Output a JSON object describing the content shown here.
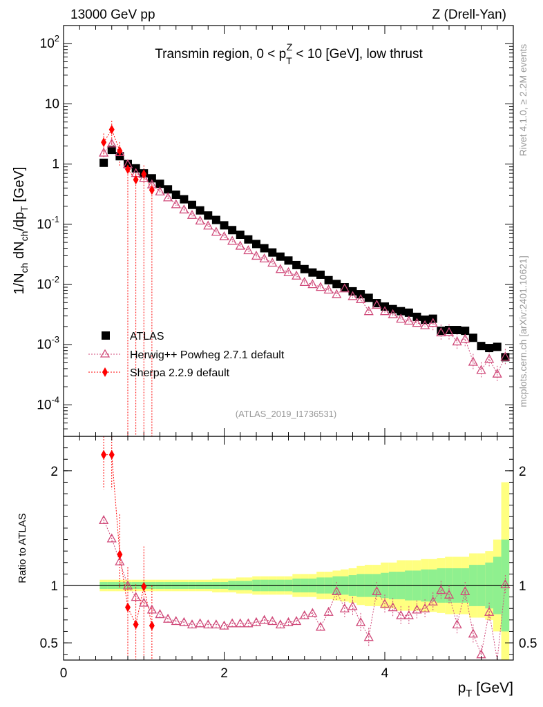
{
  "header": {
    "left": "13000 GeV pp",
    "right": "Z (Drell-Yan)",
    "region_title": "Transmin region, 0 < p_T^Z < 10 [GeV], low thrust",
    "analysis_id": "(ATLAS_2019_I1736531)",
    "side_rivet": "Rivet 4.1.0, ≥ 2.2M events",
    "side_mcplots": "mcplots.cern.ch [arXiv:2401.10621]"
  },
  "chart_data": {
    "type": "scatter",
    "x": [
      0.5,
      0.6,
      0.7,
      0.8,
      0.9,
      1.0,
      1.1,
      1.2,
      1.3,
      1.4,
      1.5,
      1.6,
      1.7,
      1.8,
      1.9,
      2.0,
      2.1,
      2.2,
      2.3,
      2.4,
      2.5,
      2.6,
      2.7,
      2.8,
      2.9,
      3.0,
      3.1,
      3.2,
      3.3,
      3.4,
      3.5,
      3.6,
      3.7,
      3.8,
      3.9,
      4.0,
      4.1,
      4.2,
      4.3,
      4.4,
      4.5,
      4.6,
      4.7,
      4.8,
      4.9,
      5.0,
      5.1,
      5.2,
      5.3,
      5.4,
      5.5
    ],
    "xlim": [
      0,
      5.6
    ],
    "xlabel": "p_T [GeV]",
    "main": {
      "ylabel": "1/N_ch dN_ch/dp_T [GeV]",
      "yscale": "log",
      "ylim": [
        3e-05,
        200
      ],
      "yticks": [
        {
          "v": 0.0001,
          "label": "10^-4"
        },
        {
          "v": 0.001,
          "label": "10^-3"
        },
        {
          "v": 0.01,
          "label": "10^-2"
        },
        {
          "v": 0.1,
          "label": "10^-1"
        },
        {
          "v": 1,
          "label": "1"
        },
        {
          "v": 10,
          "label": "10"
        },
        {
          "v": 100,
          "label": "10^2"
        }
      ]
    },
    "ratio": {
      "ylabel": "Ratio to ATLAS",
      "ylim": [
        0.35,
        2.3
      ],
      "yticks": [
        0.5,
        1,
        2
      ],
      "xticks": [
        0,
        2,
        4
      ],
      "band_inner": [
        0.03,
        0.03,
        0.03,
        0.03,
        0.03,
        0.03,
        0.03,
        0.03,
        0.03,
        0.03,
        0.03,
        0.03,
        0.03,
        0.03,
        0.03,
        0.03,
        0.04,
        0.04,
        0.04,
        0.05,
        0.05,
        0.05,
        0.05,
        0.05,
        0.06,
        0.06,
        0.06,
        0.07,
        0.07,
        0.08,
        0.08,
        0.09,
        0.1,
        0.1,
        0.1,
        0.11,
        0.12,
        0.12,
        0.13,
        0.13,
        0.14,
        0.14,
        0.15,
        0.15,
        0.15,
        0.15,
        0.18,
        0.18,
        0.2,
        0.25,
        0.4
      ],
      "band_outer": [
        0.05,
        0.05,
        0.05,
        0.05,
        0.05,
        0.05,
        0.05,
        0.05,
        0.05,
        0.05,
        0.05,
        0.05,
        0.05,
        0.05,
        0.06,
        0.06,
        0.06,
        0.07,
        0.07,
        0.08,
        0.08,
        0.08,
        0.08,
        0.08,
        0.1,
        0.1,
        0.1,
        0.12,
        0.12,
        0.13,
        0.14,
        0.15,
        0.17,
        0.18,
        0.18,
        0.2,
        0.2,
        0.22,
        0.22,
        0.22,
        0.23,
        0.23,
        0.24,
        0.25,
        0.25,
        0.25,
        0.28,
        0.28,
        0.3,
        0.4,
        0.9
      ]
    },
    "series": [
      {
        "name": "ATLAS",
        "marker": "square",
        "color": "#000000",
        "values": [
          1.05,
          1.72,
          1.35,
          1.0,
          0.85,
          0.7,
          0.58,
          0.47,
          0.38,
          0.31,
          0.26,
          0.21,
          0.17,
          0.14,
          0.118,
          0.096,
          0.08,
          0.067,
          0.056,
          0.047,
          0.04,
          0.034,
          0.029,
          0.025,
          0.021,
          0.018,
          0.0158,
          0.0145,
          0.0118,
          0.0102,
          0.009,
          0.0077,
          0.0069,
          0.006,
          0.0049,
          0.0043,
          0.0039,
          0.0036,
          0.0034,
          0.0029,
          0.0026,
          0.0027,
          0.0017,
          0.00175,
          0.00175,
          0.0017,
          0.0013,
          0.00095,
          0.00088,
          0.00092,
          0.00062
        ],
        "ratio": []
      },
      {
        "name": "Herwig++ Powheg 2.7.1 default",
        "marker": "open-triangle",
        "color": "#d04a7a",
        "values": [
          1.55,
          2.2,
          1.58,
          1.0,
          0.71,
          0.59,
          0.46,
          0.35,
          0.28,
          0.215,
          0.176,
          0.143,
          0.115,
          0.095,
          0.075,
          0.063,
          0.053,
          0.044,
          0.037,
          0.03,
          0.027,
          0.023,
          0.018,
          0.016,
          0.014,
          0.011,
          0.0101,
          0.0091,
          0.0082,
          0.0069,
          0.0086,
          0.0064,
          0.0057,
          0.0036,
          0.0046,
          0.0036,
          0.0032,
          0.0027,
          0.0025,
          0.0023,
          0.0021,
          0.0023,
          0.0016,
          0.00162,
          0.00113,
          0.00125,
          0.00052,
          0.00038,
          0.00058,
          0.00033,
          0.00063
        ],
        "ratio": [
          1.57,
          1.41,
          1.21,
          1.0,
          0.9,
          0.85,
          0.79,
          0.75,
          0.71,
          0.69,
          0.68,
          0.66,
          0.67,
          0.66,
          0.66,
          0.65,
          0.67,
          0.67,
          0.67,
          0.68,
          0.7,
          0.69,
          0.66,
          0.68,
          0.69,
          0.74,
          0.76,
          0.64,
          0.77,
          0.95,
          0.8,
          0.82,
          0.68,
          0.55,
          0.95,
          0.84,
          0.81,
          0.74,
          0.74,
          0.79,
          0.8,
          0.86,
          0.96,
          0.92,
          0.66,
          0.95,
          0.58,
          0.4,
          0.77,
          0.3,
          1.01
        ]
      },
      {
        "name": "Sherpa 2.2.9 default",
        "marker": "filled-diamond",
        "color": "#ff0000",
        "x": [
          0.5,
          0.6,
          0.7,
          0.8,
          0.9,
          1.0,
          1.1
        ],
        "values": [
          2.3,
          3.75,
          1.65,
          0.82,
          0.55,
          0.68,
          0.37
        ],
        "ratio": [
          2.14,
          2.14,
          1.27,
          0.81,
          0.66,
          0.99,
          0.65
        ]
      }
    ]
  }
}
